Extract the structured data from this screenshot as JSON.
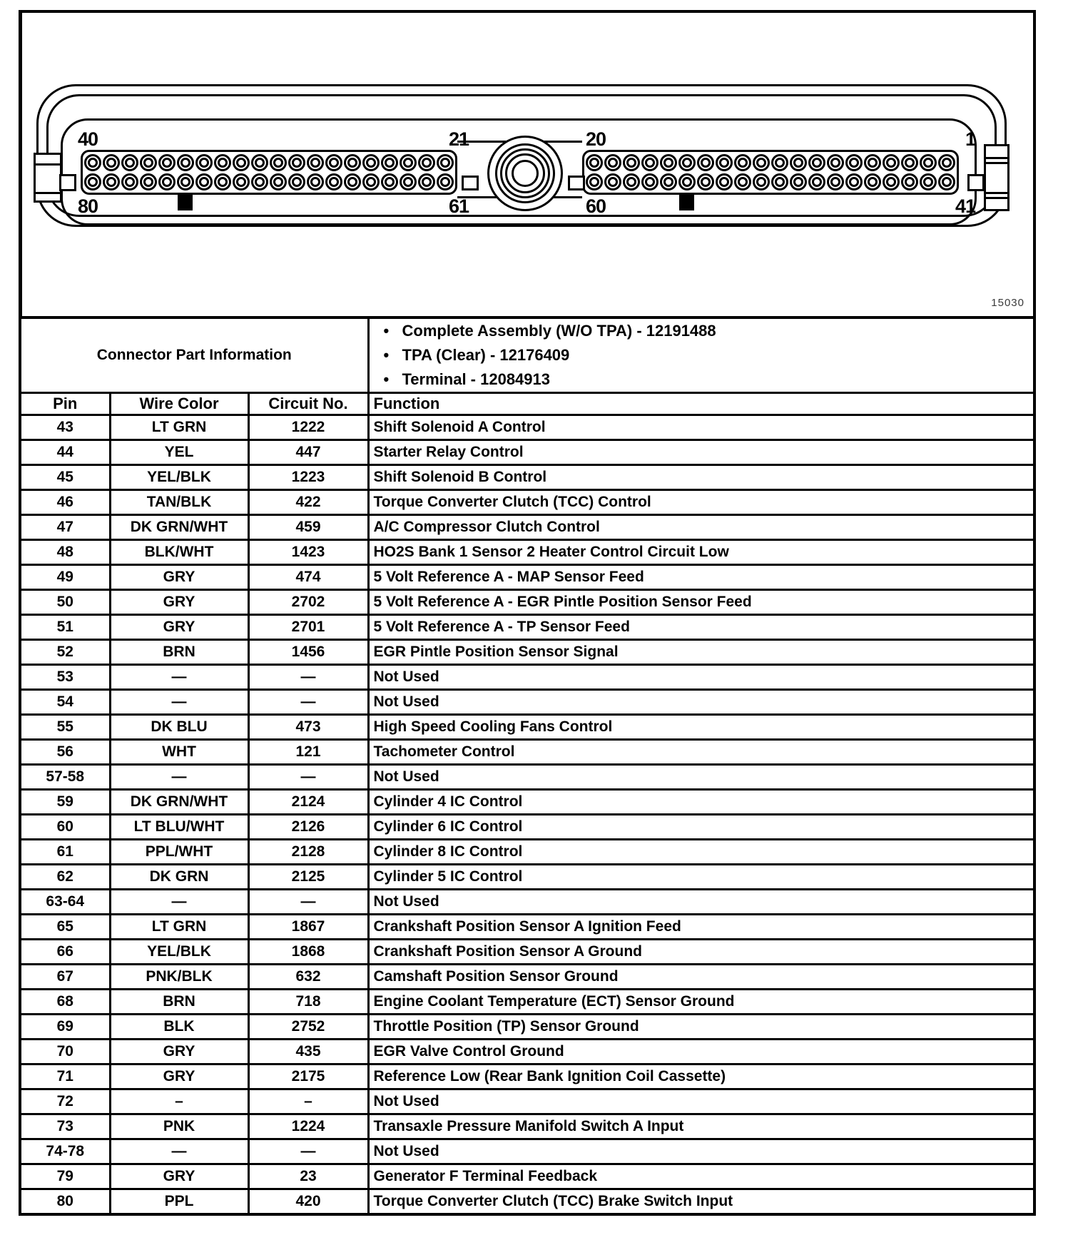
{
  "connector": {
    "figure_number": "15030",
    "left_block": {
      "top_left": "40",
      "top_right": "21",
      "bottom_left": "80",
      "bottom_right": "61",
      "pins_per_row": 20,
      "rows": 2
    },
    "right_block": {
      "top_left": "20",
      "top_right": "1",
      "bottom_left": "60",
      "bottom_right": "41",
      "pins_per_row": 20,
      "rows": 2
    }
  },
  "part_info": {
    "title": "Connector Part Information",
    "items": [
      "Complete Assembly (W/O TPA) - 12191488",
      "TPA (Clear) - 12176409",
      "Terminal - 12084913"
    ]
  },
  "table": {
    "headers": [
      "Pin",
      "Wire Color",
      "Circuit No.",
      "Function"
    ],
    "rows": [
      [
        "43",
        "LT GRN",
        "1222",
        "Shift Solenoid A Control"
      ],
      [
        "44",
        "YEL",
        "447",
        "Starter Relay Control"
      ],
      [
        "45",
        "YEL/BLK",
        "1223",
        "Shift Solenoid B Control"
      ],
      [
        "46",
        "TAN/BLK",
        "422",
        "Torque Converter Clutch (TCC) Control"
      ],
      [
        "47",
        "DK GRN/WHT",
        "459",
        "A/C Compressor Clutch Control"
      ],
      [
        "48",
        "BLK/WHT",
        "1423",
        "HO2S Bank 1 Sensor 2 Heater Control Circuit Low"
      ],
      [
        "49",
        "GRY",
        "474",
        "5 Volt Reference A - MAP Sensor Feed"
      ],
      [
        "50",
        "GRY",
        "2702",
        "5 Volt Reference A - EGR Pintle Position Sensor Feed"
      ],
      [
        "51",
        "GRY",
        "2701",
        "5 Volt Reference A - TP Sensor Feed"
      ],
      [
        "52",
        "BRN",
        "1456",
        "EGR Pintle Position Sensor Signal"
      ],
      [
        "53",
        "—",
        "—",
        "Not Used"
      ],
      [
        "54",
        "—",
        "—",
        "Not Used"
      ],
      [
        "55",
        "DK BLU",
        "473",
        "High Speed Cooling Fans Control"
      ],
      [
        "56",
        "WHT",
        "121",
        "Tachometer Control"
      ],
      [
        "57-58",
        "—",
        "—",
        "Not Used"
      ],
      [
        "59",
        "DK GRN/WHT",
        "2124",
        "Cylinder 4 IC Control"
      ],
      [
        "60",
        "LT BLU/WHT",
        "2126",
        "Cylinder 6 IC Control"
      ],
      [
        "61",
        "PPL/WHT",
        "2128",
        "Cylinder 8 IC Control"
      ],
      [
        "62",
        "DK GRN",
        "2125",
        "Cylinder 5 IC Control"
      ],
      [
        "63-64",
        "—",
        "—",
        "Not Used"
      ],
      [
        "65",
        "LT GRN",
        "1867",
        "Crankshaft Position Sensor A Ignition Feed"
      ],
      [
        "66",
        "YEL/BLK",
        "1868",
        "Crankshaft Position Sensor A Ground"
      ],
      [
        "67",
        "PNK/BLK",
        "632",
        "Camshaft Position Sensor Ground"
      ],
      [
        "68",
        "BRN",
        "718",
        "Engine Coolant Temperature (ECT) Sensor Ground"
      ],
      [
        "69",
        "BLK",
        "2752",
        "Throttle Position (TP) Sensor Ground"
      ],
      [
        "70",
        "GRY",
        "435",
        "EGR Valve Control Ground"
      ],
      [
        "71",
        "GRY",
        "2175",
        "Reference Low (Rear Bank Ignition Coil Cassette)"
      ],
      [
        "72",
        "–",
        "–",
        "Not Used"
      ],
      [
        "73",
        "PNK",
        "1224",
        "Transaxle Pressure Manifold Switch A Input"
      ],
      [
        "74-78",
        "—",
        "—",
        "Not Used"
      ],
      [
        "79",
        "GRY",
        "23",
        "Generator F Terminal Feedback"
      ],
      [
        "80",
        "PPL",
        "420",
        "Torque Converter Clutch (TCC) Brake Switch Input"
      ]
    ]
  }
}
